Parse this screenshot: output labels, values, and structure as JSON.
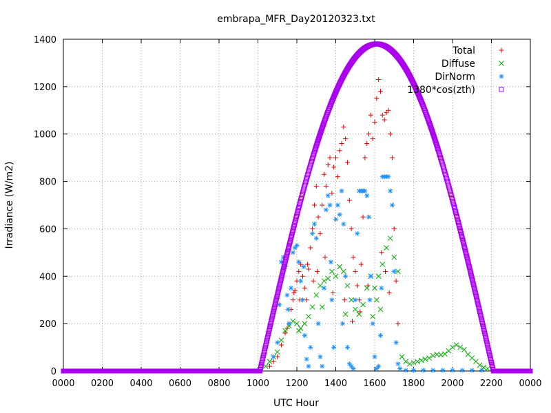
{
  "chart_data": {
    "type": "scatter",
    "title": "embrapa_MFR_Day20120323.txt",
    "xlabel": "UTC Hour",
    "ylabel": "Irradiance (W/m2)",
    "xlim": [
      0,
      24
    ],
    "ylim": [
      0,
      1400
    ],
    "grid": true,
    "legend_position": "top-right",
    "x_ticks": [
      {
        "value": 0,
        "label": "0000"
      },
      {
        "value": 2,
        "label": "0200"
      },
      {
        "value": 4,
        "label": "0400"
      },
      {
        "value": 6,
        "label": "0600"
      },
      {
        "value": 8,
        "label": "0800"
      },
      {
        "value": 10,
        "label": "1000"
      },
      {
        "value": 12,
        "label": "1200"
      },
      {
        "value": 14,
        "label": "1400"
      },
      {
        "value": 16,
        "label": "1600"
      },
      {
        "value": 18,
        "label": "1800"
      },
      {
        "value": 20,
        "label": "2000"
      },
      {
        "value": 22,
        "label": "2200"
      },
      {
        "value": 24,
        "label": "0000"
      }
    ],
    "y_ticks": [
      {
        "value": 0,
        "label": "0"
      },
      {
        "value": 200,
        "label": "200"
      },
      {
        "value": 400,
        "label": "400"
      },
      {
        "value": 600,
        "label": "600"
      },
      {
        "value": 800,
        "label": "800"
      },
      {
        "value": 1000,
        "label": "1000"
      },
      {
        "value": 1200,
        "label": "1200"
      },
      {
        "value": 1400,
        "label": "1400"
      }
    ],
    "series": [
      {
        "name": "Total",
        "marker": "plus",
        "color": "#dd0000",
        "points": [
          [
            10.6,
            20
          ],
          [
            10.8,
            40
          ],
          [
            11.0,
            60
          ],
          [
            11.2,
            110
          ],
          [
            11.4,
            160
          ],
          [
            11.5,
            180
          ],
          [
            11.6,
            200
          ],
          [
            11.7,
            260
          ],
          [
            11.8,
            300
          ],
          [
            11.9,
            340
          ],
          [
            12.0,
            380
          ],
          [
            12.1,
            420
          ],
          [
            12.2,
            450
          ],
          [
            12.3,
            400
          ],
          [
            12.4,
            350
          ],
          [
            12.5,
            300
          ],
          [
            12.6,
            430
          ],
          [
            12.7,
            520
          ],
          [
            12.8,
            600
          ],
          [
            12.9,
            700
          ],
          [
            13.0,
            780
          ],
          [
            13.1,
            650
          ],
          [
            13.2,
            580
          ],
          [
            13.3,
            700
          ],
          [
            13.4,
            830
          ],
          [
            13.5,
            780
          ],
          [
            13.6,
            870
          ],
          [
            13.7,
            900
          ],
          [
            13.8,
            750
          ],
          [
            13.9,
            860
          ],
          [
            14.0,
            900
          ],
          [
            14.1,
            820
          ],
          [
            14.2,
            930
          ],
          [
            14.3,
            960
          ],
          [
            14.4,
            1030
          ],
          [
            14.5,
            980
          ],
          [
            14.6,
            880
          ],
          [
            14.7,
            720
          ],
          [
            14.8,
            600
          ],
          [
            14.9,
            480
          ],
          [
            15.0,
            420
          ],
          [
            15.1,
            360
          ],
          [
            15.2,
            300
          ],
          [
            15.3,
            450
          ],
          [
            15.4,
            650
          ],
          [
            15.5,
            900
          ],
          [
            15.6,
            960
          ],
          [
            15.7,
            1000
          ],
          [
            15.8,
            1080
          ],
          [
            15.9,
            980
          ],
          [
            16.0,
            1050
          ],
          [
            16.1,
            1150
          ],
          [
            16.2,
            1230
          ],
          [
            16.3,
            1180
          ],
          [
            16.4,
            1080
          ],
          [
            16.5,
            1060
          ],
          [
            16.6,
            1090
          ],
          [
            16.7,
            1100
          ],
          [
            16.8,
            1000
          ],
          [
            16.9,
            900
          ],
          [
            17.0,
            600
          ],
          [
            17.1,
            380
          ],
          [
            17.2,
            200
          ],
          [
            16.35,
            500
          ],
          [
            16.55,
            420
          ],
          [
            16.75,
            330
          ],
          [
            15.65,
            360
          ],
          [
            15.25,
            250
          ],
          [
            14.85,
            210
          ],
          [
            14.45,
            300
          ],
          [
            13.85,
            330
          ],
          [
            13.45,
            480
          ],
          [
            13.05,
            420
          ],
          [
            12.85,
            380
          ],
          [
            12.55,
            450
          ],
          [
            12.15,
            300
          ],
          [
            11.85,
            330
          ]
        ]
      },
      {
        "name": "Diffuse",
        "marker": "cross",
        "color": "#00aa00",
        "points": [
          [
            10.4,
            20
          ],
          [
            10.6,
            40
          ],
          [
            10.8,
            60
          ],
          [
            11.0,
            80
          ],
          [
            11.2,
            130
          ],
          [
            11.4,
            170
          ],
          [
            11.6,
            190
          ],
          [
            11.8,
            210
          ],
          [
            12.0,
            200
          ],
          [
            12.2,
            180
          ],
          [
            12.4,
            200
          ],
          [
            12.6,
            230
          ],
          [
            12.8,
            270
          ],
          [
            13.0,
            320
          ],
          [
            13.2,
            360
          ],
          [
            13.4,
            380
          ],
          [
            13.6,
            390
          ],
          [
            13.8,
            420
          ],
          [
            14.0,
            400
          ],
          [
            14.2,
            440
          ],
          [
            14.4,
            420
          ],
          [
            14.6,
            360
          ],
          [
            14.8,
            300
          ],
          [
            15.0,
            260
          ],
          [
            15.2,
            240
          ],
          [
            15.4,
            280
          ],
          [
            15.6,
            350
          ],
          [
            15.8,
            400
          ],
          [
            16.0,
            350
          ],
          [
            16.2,
            400
          ],
          [
            16.4,
            450
          ],
          [
            16.6,
            520
          ],
          [
            16.8,
            560
          ],
          [
            17.0,
            480
          ],
          [
            17.2,
            420
          ],
          [
            17.4,
            60
          ],
          [
            17.6,
            40
          ],
          [
            17.8,
            30
          ],
          [
            18.0,
            35
          ],
          [
            18.2,
            40
          ],
          [
            18.4,
            45
          ],
          [
            18.6,
            50
          ],
          [
            18.8,
            55
          ],
          [
            19.0,
            65
          ],
          [
            19.2,
            70
          ],
          [
            19.4,
            68
          ],
          [
            19.6,
            72
          ],
          [
            19.8,
            85
          ],
          [
            20.0,
            100
          ],
          [
            20.2,
            110
          ],
          [
            20.4,
            100
          ],
          [
            20.6,
            90
          ],
          [
            20.8,
            70
          ],
          [
            21.0,
            55
          ],
          [
            21.2,
            40
          ],
          [
            21.4,
            25
          ],
          [
            21.6,
            15
          ],
          [
            21.8,
            10
          ],
          [
            15.9,
            230
          ],
          [
            16.1,
            300
          ],
          [
            16.3,
            260
          ],
          [
            14.5,
            240
          ],
          [
            13.3,
            270
          ],
          [
            12.1,
            170
          ]
        ]
      },
      {
        "name": "DirNorm",
        "marker": "star",
        "color": "#1e90ff",
        "points": [
          [
            10.8,
            60
          ],
          [
            11.0,
            120
          ],
          [
            11.1,
            280
          ],
          [
            11.2,
            460
          ],
          [
            11.3,
            480
          ],
          [
            11.4,
            440
          ],
          [
            11.5,
            320
          ],
          [
            11.6,
            200
          ],
          [
            11.7,
            350
          ],
          [
            11.8,
            500
          ],
          [
            11.9,
            520
          ],
          [
            12.0,
            530
          ],
          [
            12.1,
            460
          ],
          [
            12.2,
            380
          ],
          [
            12.3,
            300
          ],
          [
            12.4,
            150
          ],
          [
            12.5,
            50
          ],
          [
            12.6,
            20
          ],
          [
            12.7,
            100
          ],
          [
            12.8,
            580
          ],
          [
            12.9,
            620
          ],
          [
            13.0,
            560
          ],
          [
            13.1,
            200
          ],
          [
            13.2,
            60
          ],
          [
            13.3,
            20
          ],
          [
            13.4,
            350
          ],
          [
            13.5,
            680
          ],
          [
            13.6,
            740
          ],
          [
            13.7,
            700
          ],
          [
            13.8,
            300
          ],
          [
            13.9,
            100
          ],
          [
            14.0,
            640
          ],
          [
            14.1,
            700
          ],
          [
            14.2,
            660
          ],
          [
            14.3,
            760
          ],
          [
            14.4,
            620
          ],
          [
            14.5,
            400
          ],
          [
            14.6,
            100
          ],
          [
            14.7,
            30
          ],
          [
            14.8,
            20
          ],
          [
            14.9,
            10
          ],
          [
            15.0,
            300
          ],
          [
            15.1,
            580
          ],
          [
            15.2,
            760
          ],
          [
            15.3,
            760
          ],
          [
            15.4,
            760
          ],
          [
            15.5,
            760
          ],
          [
            15.6,
            740
          ],
          [
            15.7,
            650
          ],
          [
            15.8,
            400
          ],
          [
            15.9,
            200
          ],
          [
            16.0,
            60
          ],
          [
            16.1,
            10
          ],
          [
            16.2,
            20
          ],
          [
            16.3,
            150
          ],
          [
            16.4,
            820
          ],
          [
            16.5,
            820
          ],
          [
            16.6,
            820
          ],
          [
            16.7,
            820
          ],
          [
            16.8,
            760
          ],
          [
            16.9,
            700
          ],
          [
            17.0,
            420
          ],
          [
            17.1,
            120
          ],
          [
            17.2,
            30
          ],
          [
            17.3,
            10
          ],
          [
            17.6,
            3
          ],
          [
            18.0,
            3
          ],
          [
            18.5,
            3
          ],
          [
            19.0,
            3
          ],
          [
            19.5,
            3
          ],
          [
            20.0,
            3
          ],
          [
            20.5,
            3
          ],
          [
            21.0,
            3
          ],
          [
            21.5,
            3
          ],
          [
            12.35,
            440
          ],
          [
            13.75,
            460
          ],
          [
            15.75,
            300
          ],
          [
            11.55,
            260
          ],
          [
            14.35,
            200
          ],
          [
            16.35,
            350
          ]
        ]
      },
      {
        "name": "1380*cos(zth)",
        "marker": "square",
        "color": "#aa00ee",
        "formula": {
          "amplitude": 1380,
          "sunrise": 10.1,
          "sunset": 22.1
        }
      }
    ]
  }
}
